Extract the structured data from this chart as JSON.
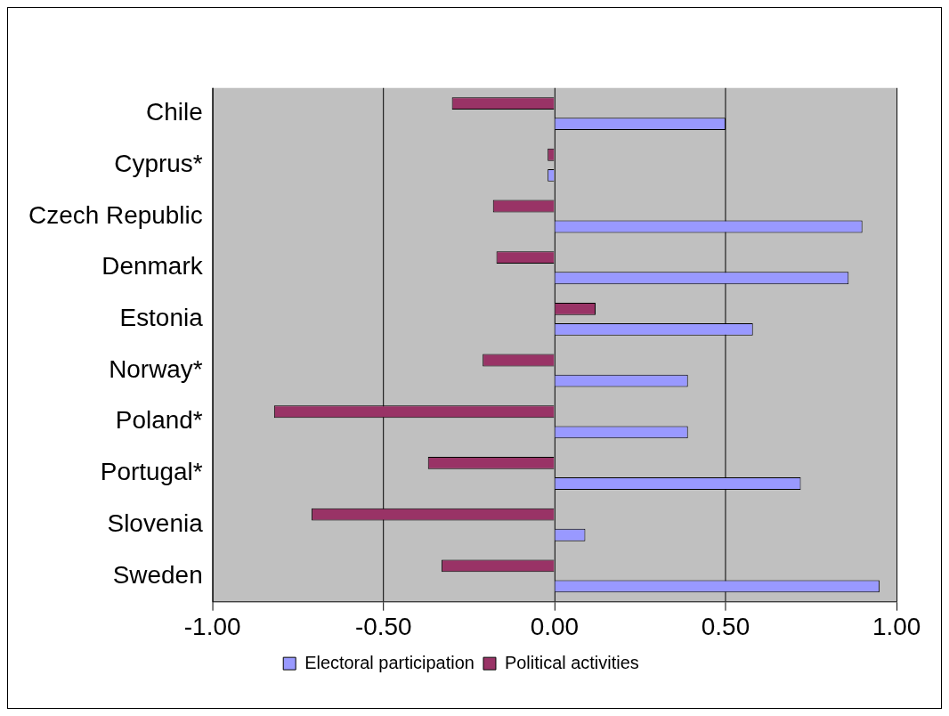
{
  "chart_data": {
    "type": "bar",
    "orientation": "horizontal",
    "categories": [
      "Chile",
      "Cyprus*",
      "Czech Republic",
      "Denmark",
      "Estonia",
      "Norway*",
      "Poland*",
      "Portugal*",
      "Slovenia",
      "Sweden"
    ],
    "series": [
      {
        "name": "Electoral participation",
        "color": "#9999ff",
        "values": [
          0.5,
          -0.02,
          0.9,
          0.86,
          0.58,
          0.39,
          0.39,
          0.72,
          0.09,
          0.95
        ]
      },
      {
        "name": "Political activities",
        "color": "#993366",
        "values": [
          -0.3,
          -0.02,
          -0.18,
          -0.17,
          0.12,
          -0.21,
          -0.82,
          -0.37,
          -0.71,
          -0.33
        ]
      }
    ],
    "xlim": [
      -1,
      1
    ],
    "xticks": [
      {
        "value": -1,
        "label": "-1.00"
      },
      {
        "value": -0.5,
        "label": "-0.50"
      },
      {
        "value": 0,
        "label": "0.00"
      },
      {
        "value": 0.5,
        "label": "0.50"
      },
      {
        "value": 1,
        "label": "1.00"
      }
    ],
    "grid": "x",
    "legend": "bottom"
  }
}
